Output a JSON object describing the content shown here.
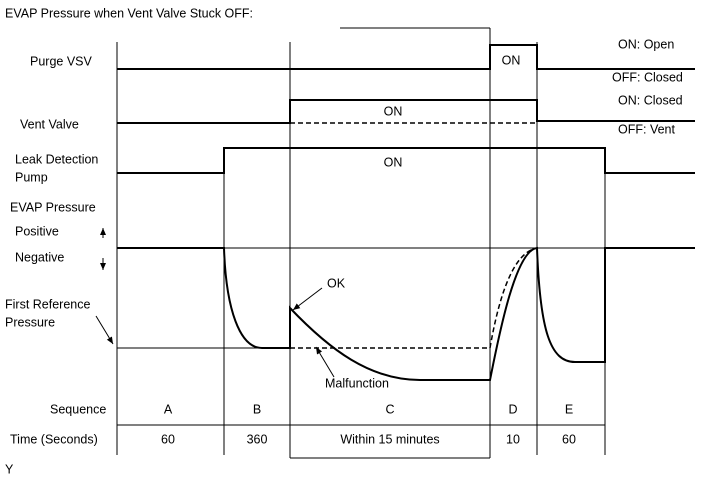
{
  "title": "EVAP Pressure when Vent Valve Stuck OFF:",
  "rows": {
    "purge_vsv": {
      "label": "Purge VSV",
      "on": "ON",
      "state_on": "ON: Open",
      "state_off": "OFF: Closed"
    },
    "vent_valve": {
      "label": "Vent Valve",
      "on": "ON",
      "state_on": "ON: Closed",
      "state_off": "OFF: Vent"
    },
    "leak_pump": {
      "label": [
        "Leak Detection",
        "Pump"
      ],
      "on": "ON"
    },
    "evap_pressure": {
      "label": "EVAP Pressure",
      "positive": "Positive",
      "negative": "Negative",
      "reference": [
        "First Reference",
        "Pressure"
      ],
      "ok": "OK",
      "malfunction": "Malfunction"
    }
  },
  "sequence": {
    "label": "Sequence",
    "steps": [
      "A",
      "B",
      "C",
      "D",
      "E"
    ]
  },
  "time": {
    "label": "Time (Seconds)",
    "steps": [
      "60",
      "360",
      "Within 15 minutes",
      "10",
      "60"
    ]
  },
  "footer": "Y"
}
